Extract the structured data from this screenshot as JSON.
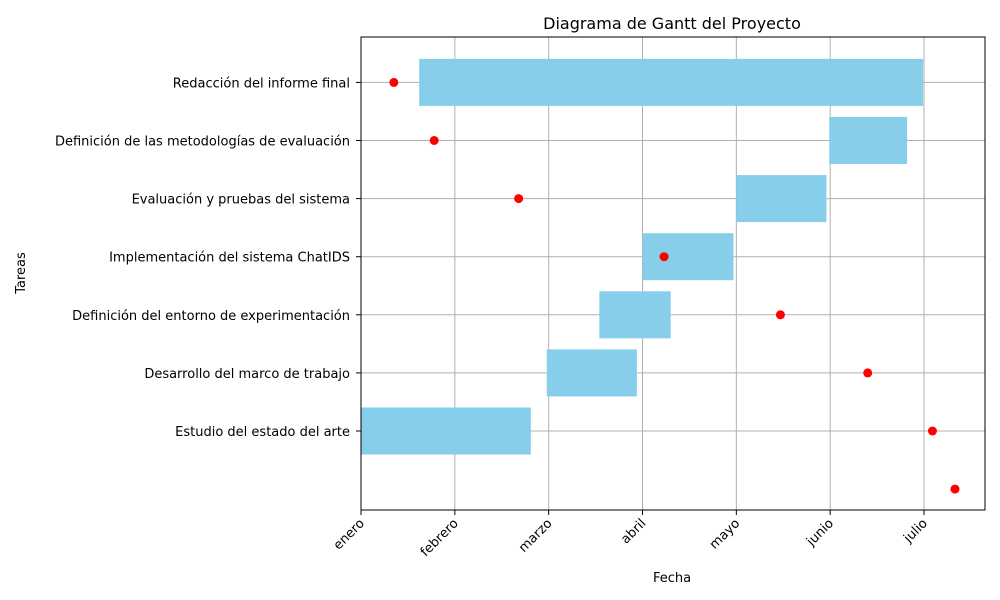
{
  "chart_data": {
    "type": "gantt",
    "title": "Diagrama de Gantt del Proyecto",
    "xlabel": "Fecha",
    "ylabel": "Tareas",
    "x_ticks": [
      "enero",
      "febrero",
      "marzo",
      "abril",
      "mayo",
      "junio",
      "julio"
    ],
    "xlim": [
      0,
      6.65
    ],
    "tasks": [
      {
        "name": "Estudio del estado del arte",
        "start": 0.0,
        "end": 1.81
      },
      {
        "name": "Desarrollo del marco de trabajo",
        "start": 1.98,
        "end": 2.94
      },
      {
        "name": "Definición del entorno de experimentación",
        "start": 2.54,
        "end": 3.3
      },
      {
        "name": "Implementación del sistema ChatIDS",
        "start": 3.0,
        "end": 3.97
      },
      {
        "name": "Evaluación y pruebas del sistema",
        "start": 4.0,
        "end": 4.96
      },
      {
        "name": "Definición de las metodologías de evaluación",
        "start": 4.99,
        "end": 5.82
      },
      {
        "name": "Redacción del informe final",
        "start": 0.62,
        "end": 5.99
      }
    ],
    "markers": [
      {
        "x": 6.33,
        "y": -1
      },
      {
        "x": 6.09,
        "y": 0
      },
      {
        "x": 5.4,
        "y": 1
      },
      {
        "x": 4.47,
        "y": 2
      },
      {
        "x": 3.23,
        "y": 3
      },
      {
        "x": 1.68,
        "y": 4
      },
      {
        "x": 0.78,
        "y": 5
      },
      {
        "x": 0.35,
        "y": 6
      }
    ],
    "bar_color": "#87CEEB",
    "marker_color": "#FF0000",
    "grid": true
  }
}
